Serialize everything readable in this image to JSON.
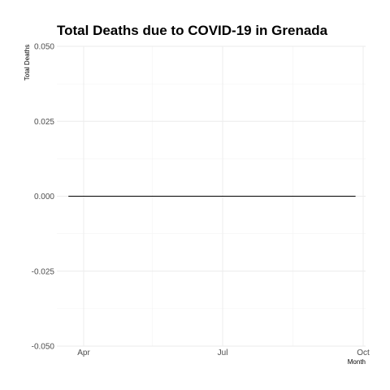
{
  "chart_data": {
    "type": "line",
    "title": "Total Deaths due to COVID-19 in Grenada",
    "xlabel": "Month",
    "ylabel": "Total Deaths",
    "x_tick_labels": [
      "Apr",
      "Jul",
      "Oct"
    ],
    "x_tick_dates": [
      "2020-04-01",
      "2020-07-01",
      "2020-10-01"
    ],
    "x_minor_dates": [
      "2020-05-16",
      "2020-08-16"
    ],
    "xlim": [
      "2020-03-22",
      "2020-10-01"
    ],
    "y_tick_labels": [
      "0.050",
      "0.025",
      "0.000",
      "-0.025",
      "-0.050"
    ],
    "y_ticks": [
      0.05,
      0.025,
      0,
      -0.025,
      -0.05
    ],
    "ylim": [
      -0.05,
      0.05
    ],
    "grid": true,
    "series": [
      {
        "x": [
          "2020-03-22",
          "2020-09-26"
        ],
        "values": [
          0,
          0
        ]
      }
    ],
    "line_color": "#000000"
  }
}
